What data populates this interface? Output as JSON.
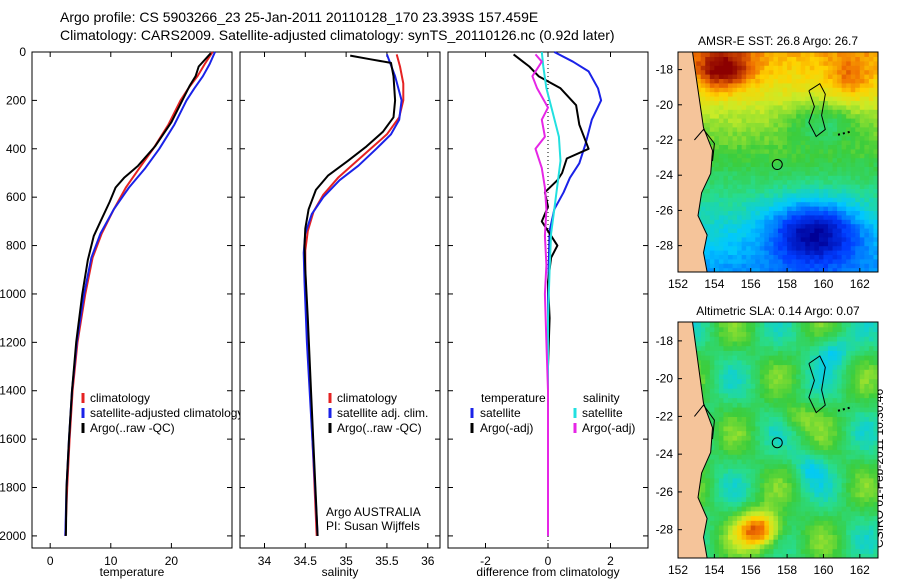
{
  "header": {
    "title_line1": "Argo profile: CS 5903266_23 25-Jan-2011 20110128_170 23.393S 157.459E",
    "title_line2": "Climatology: CARS2009. Satellite-adjusted climatology: synTS_20110126.nc (0.92d later)"
  },
  "stamp": "CSIRO 01-Feb-2011 10:30:46",
  "colors": {
    "climatology": "#e52222",
    "satellite": "#1a22e8",
    "argo": "#000000",
    "sat_salinity": "#22e0e0",
    "argo_salinity": "#e626e6"
  },
  "chart_data": [
    {
      "type": "line",
      "id": "temperature",
      "xlabel": "temperature",
      "xlim": [
        -3,
        30
      ],
      "ylim": [
        2050,
        0
      ],
      "xticks": [
        0,
        10,
        20
      ],
      "yticks": [
        0,
        200,
        400,
        600,
        800,
        1000,
        1200,
        1400,
        1600,
        1800,
        2000
      ],
      "legend": [
        "climatology",
        "satellite-adjusted climatology",
        "Argo(..raw -QC)"
      ],
      "series": [
        {
          "name": "climatology",
          "color": "#e52222",
          "points": [
            [
              26.8,
              0
            ],
            [
              25.5,
              50
            ],
            [
              24.3,
              100
            ],
            [
              22.8,
              150
            ],
            [
              21.5,
              200
            ],
            [
              19.5,
              300
            ],
            [
              17,
              400
            ],
            [
              15,
              470
            ],
            [
              12.5,
              560
            ],
            [
              10.5,
              650
            ],
            [
              8.5,
              750
            ],
            [
              7,
              850
            ],
            [
              5.8,
              1000
            ],
            [
              4.5,
              1200
            ],
            [
              3.7,
              1400
            ],
            [
              3.2,
              1600
            ],
            [
              2.8,
              1800
            ],
            [
              2.5,
              2000
            ]
          ]
        },
        {
          "name": "satellite-adjusted climatology",
          "color": "#1a22e8",
          "points": [
            [
              27.2,
              0
            ],
            [
              26.3,
              50
            ],
            [
              25.2,
              100
            ],
            [
              23.8,
              150
            ],
            [
              22.5,
              200
            ],
            [
              20.5,
              300
            ],
            [
              18,
              400
            ],
            [
              15.7,
              480
            ],
            [
              13,
              560
            ],
            [
              10.5,
              650
            ],
            [
              8.3,
              750
            ],
            [
              6.8,
              850
            ],
            [
              5.6,
              1000
            ],
            [
              4.4,
              1200
            ],
            [
              3.6,
              1400
            ],
            [
              3.1,
              1600
            ],
            [
              2.7,
              1800
            ],
            [
              2.5,
              2000
            ]
          ]
        },
        {
          "name": "Argo(..raw -QC)",
          "color": "#000000",
          "points": [
            [
              26.5,
              5
            ],
            [
              24.5,
              60
            ],
            [
              24,
              100
            ],
            [
              23,
              140
            ],
            [
              21.8,
              200
            ],
            [
              20,
              290
            ],
            [
              17.3,
              390
            ],
            [
              14.5,
              470
            ],
            [
              12.2,
              520
            ],
            [
              10.8,
              560
            ],
            [
              9.8,
              620
            ],
            [
              8.3,
              700
            ],
            [
              7.2,
              760
            ],
            [
              6.2,
              860
            ],
            [
              5.3,
              1000
            ],
            [
              4.3,
              1200
            ],
            [
              3.6,
              1400
            ],
            [
              3.1,
              1600
            ],
            [
              2.7,
              1800
            ],
            [
              2.6,
              2000
            ]
          ]
        }
      ]
    },
    {
      "type": "line",
      "id": "salinity",
      "xlabel": "salinity",
      "xlim": [
        33.7,
        36.15
      ],
      "ylim": [
        2050,
        0
      ],
      "xticks": [
        34,
        34.5,
        35,
        35.5,
        36
      ],
      "xticklabels": [
        "34",
        "34.5",
        "35",
        "35.5",
        "36"
      ],
      "legend": [
        "climatology",
        "satellite adj. clim.",
        "Argo(..raw -QC)"
      ],
      "credits": [
        "Argo AUSTRALIA",
        "PI: Susan Wijffels"
      ],
      "series": [
        {
          "name": "climatology",
          "color": "#e52222",
          "points": [
            [
              35.62,
              10
            ],
            [
              35.66,
              60
            ],
            [
              35.7,
              130
            ],
            [
              35.7,
              200
            ],
            [
              35.65,
              270
            ],
            [
              35.5,
              340
            ],
            [
              35.3,
              400
            ],
            [
              35.1,
              460
            ],
            [
              34.9,
              520
            ],
            [
              34.72,
              590
            ],
            [
              34.6,
              660
            ],
            [
              34.53,
              740
            ],
            [
              34.5,
              820
            ],
            [
              34.5,
              900
            ],
            [
              34.52,
              1100
            ],
            [
              34.56,
              1400
            ],
            [
              34.6,
              1700
            ],
            [
              34.64,
              2000
            ]
          ]
        },
        {
          "name": "satellite adj. clim.",
          "color": "#1a22e8",
          "points": [
            [
              35.5,
              10
            ],
            [
              35.6,
              100
            ],
            [
              35.68,
              200
            ],
            [
              35.65,
              280
            ],
            [
              35.55,
              340
            ],
            [
              35.37,
              400
            ],
            [
              35.15,
              470
            ],
            [
              34.92,
              530
            ],
            [
              34.72,
              600
            ],
            [
              34.58,
              670
            ],
            [
              34.5,
              750
            ],
            [
              34.48,
              830
            ],
            [
              34.49,
              950
            ],
            [
              34.52,
              1200
            ],
            [
              34.57,
              1500
            ],
            [
              34.62,
              1800
            ],
            [
              34.65,
              2000
            ]
          ]
        },
        {
          "name": "Argo(..raw -QC)",
          "color": "#000000",
          "points": [
            [
              35.05,
              15
            ],
            [
              35.3,
              30
            ],
            [
              35.55,
              45
            ],
            [
              35.58,
              100
            ],
            [
              35.6,
              200
            ],
            [
              35.58,
              270
            ],
            [
              35.45,
              330
            ],
            [
              35.25,
              390
            ],
            [
              35.02,
              450
            ],
            [
              34.78,
              510
            ],
            [
              34.63,
              570
            ],
            [
              34.54,
              650
            ],
            [
              34.5,
              730
            ],
            [
              34.49,
              800
            ],
            [
              34.5,
              900
            ],
            [
              34.53,
              1100
            ],
            [
              34.57,
              1400
            ],
            [
              34.61,
              1700
            ],
            [
              34.65,
              2000
            ]
          ]
        }
      ]
    },
    {
      "type": "line",
      "id": "difference",
      "xlabel": "difference from climatology",
      "xlim": [
        -3.2,
        3.2
      ],
      "ylim": [
        2050,
        0
      ],
      "xticks": [
        -2,
        0,
        2
      ],
      "legend_left": [
        "temperature",
        "satellite",
        "Argo(-adj)"
      ],
      "legend_right": [
        "salinity",
        "satellite",
        "Argo(-adj)"
      ],
      "series": [
        {
          "name": "temperature satellite",
          "color": "#1a22e8",
          "points": [
            [
              0.2,
              0
            ],
            [
              0.8,
              40
            ],
            [
              1.3,
              80
            ],
            [
              1.6,
              150
            ],
            [
              1.7,
              200
            ],
            [
              1.4,
              280
            ],
            [
              1.2,
              380
            ],
            [
              1.0,
              460
            ],
            [
              0.7,
              520
            ],
            [
              0.5,
              580
            ],
            [
              0.2,
              650
            ],
            [
              0.05,
              740
            ],
            [
              0,
              1000
            ],
            [
              0,
              1600
            ],
            [
              0,
              2000
            ]
          ]
        },
        {
          "name": "temperature Argo(-adj)",
          "color": "#000000",
          "points": [
            [
              -1.1,
              10
            ],
            [
              -0.8,
              40
            ],
            [
              -0.6,
              60
            ],
            [
              -0.3,
              100
            ],
            [
              0.4,
              150
            ],
            [
              0.9,
              220
            ],
            [
              1.0,
              300
            ],
            [
              1.3,
              400
            ],
            [
              0.6,
              440
            ],
            [
              0.45,
              500
            ],
            [
              0.3,
              530
            ],
            [
              -0.1,
              580
            ],
            [
              0.0,
              640
            ],
            [
              -0.2,
              700
            ],
            [
              0.3,
              800
            ],
            [
              0.1,
              850
            ],
            [
              0.0,
              950
            ],
            [
              0.05,
              1100
            ],
            [
              0,
              1300
            ],
            [
              0,
              1600
            ],
            [
              0,
              2000
            ]
          ]
        },
        {
          "name": "salinity satellite",
          "color": "#22e0e0",
          "points": [
            [
              -0.2,
              0
            ],
            [
              -0.15,
              60
            ],
            [
              -0.05,
              150
            ],
            [
              0.15,
              250
            ],
            [
              0.35,
              350
            ],
            [
              0.4,
              450
            ],
            [
              0.3,
              550
            ],
            [
              0.2,
              650
            ],
            [
              0.1,
              750
            ],
            [
              0.05,
              900
            ],
            [
              0,
              1100
            ],
            [
              0,
              1600
            ],
            [
              0,
              2000
            ]
          ]
        },
        {
          "name": "salinity Argo(-adj)",
          "color": "#e626e6",
          "points": [
            [
              -0.4,
              10
            ],
            [
              -0.2,
              40
            ],
            [
              -0.5,
              100
            ],
            [
              -0.35,
              150
            ],
            [
              0,
              230
            ],
            [
              -0.2,
              280
            ],
            [
              -0.1,
              350
            ],
            [
              -0.4,
              400
            ],
            [
              -0.2,
              480
            ],
            [
              -0.1,
              560
            ],
            [
              -0.05,
              650
            ],
            [
              -0.1,
              760
            ],
            [
              -0.05,
              880
            ],
            [
              -0.1,
              1000
            ],
            [
              -0.05,
              1200
            ],
            [
              0,
              1400
            ],
            [
              0,
              2000
            ]
          ]
        }
      ]
    },
    {
      "type": "heatmap",
      "id": "sst_map",
      "title": "AMSR-E SST: 26.8 Argo: 26.7",
      "xlim": [
        152,
        163
      ],
      "ylim": [
        -29.5,
        -17
      ],
      "xticks": [
        152,
        154,
        156,
        158,
        160,
        162
      ],
      "yticks": [
        -18,
        -20,
        -22,
        -24,
        -26,
        -28
      ],
      "marker": [
        157.459,
        -23.393
      ]
    },
    {
      "type": "heatmap",
      "id": "sla_map",
      "title": "Altimetric SLA: 0.14 Argo: 0.07",
      "xlim": [
        152,
        163
      ],
      "ylim": [
        -29.5,
        -17
      ],
      "xticks": [
        152,
        154,
        156,
        158,
        160,
        162
      ],
      "yticks": [
        -18,
        -20,
        -22,
        -24,
        -26,
        -28
      ],
      "marker": [
        157.459,
        -23.393
      ]
    }
  ]
}
